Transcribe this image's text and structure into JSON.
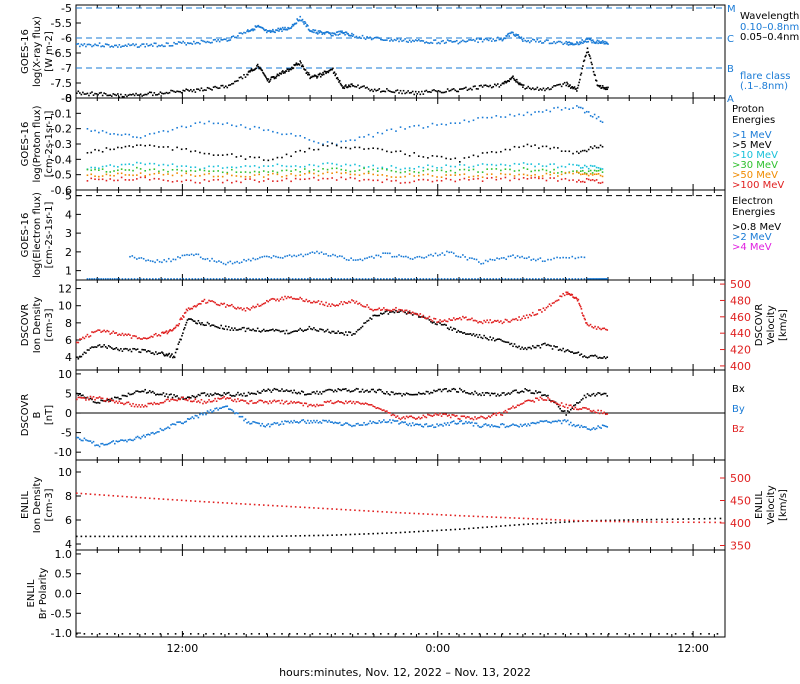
{
  "colors": {
    "black": "#000000",
    "blue": "#1a7bd6",
    "cyan": "#17c0d9",
    "green": "#2ec02e",
    "orange": "#f08a00",
    "red": "#e02020",
    "magenta": "#e020e0"
  },
  "x_axis": {
    "label": "hours:minutes, Nov. 12, 2022 – Nov. 13, 2022",
    "ticks": [
      {
        "hour": 12,
        "label": "12:00"
      },
      {
        "hour": 24,
        "label": "0:00"
      },
      {
        "hour": 36,
        "label": "12:00"
      }
    ],
    "range_hours": [
      7,
      37.5
    ]
  },
  "chart_data": [
    {
      "id": "xray",
      "type": "scatter",
      "ylabel_lines": [
        "GOES-16",
        "log(X-ray flux)",
        "[W m-2]"
      ],
      "ylim": [
        -8.0,
        -4.9
      ],
      "yticks": [
        -5.0,
        -5.5,
        -6.0,
        -6.5,
        -7.0,
        -7.5,
        -8.0
      ],
      "flare_lines": [
        {
          "value": -5.0,
          "label": "M"
        },
        {
          "value": -6.0,
          "label": "C"
        },
        {
          "value": -7.0,
          "label": "B"
        },
        {
          "value": -8.0,
          "label": "A"
        }
      ],
      "legend_title": "Wavelength",
      "legend": [
        {
          "name": "0.10–0.8nm",
          "color": "#1a7bd6"
        },
        {
          "name": "0.05–0.4nm",
          "color": "#000000"
        }
      ],
      "legend_note_lines": [
        "flare class",
        "(.1–.8nm)"
      ],
      "series": [
        {
          "name": "0.10–0.8nm",
          "color": "#1a7bd6",
          "x": [
            7.0,
            8.0,
            9.0,
            10.0,
            11.0,
            12.0,
            13.0,
            14.0,
            15.0,
            15.5,
            16.0,
            16.5,
            17.0,
            17.5,
            18.0,
            18.5,
            19.0,
            19.5,
            20.0,
            21.0,
            22.0,
            23.0,
            24.0,
            25.0,
            26.0,
            27.0,
            27.5,
            28.0,
            29.0,
            30.0,
            30.5,
            31.0,
            31.5,
            32.0
          ],
          "y": [
            -6.2,
            -6.2,
            -6.25,
            -6.22,
            -6.2,
            -6.15,
            -6.1,
            -6.05,
            -5.75,
            -5.6,
            -5.8,
            -5.7,
            -5.65,
            -5.3,
            -5.75,
            -5.8,
            -5.85,
            -5.8,
            -5.9,
            -6.0,
            -6.05,
            -6.08,
            -6.1,
            -6.1,
            -6.05,
            -6.0,
            -5.8,
            -6.05,
            -6.1,
            -6.15,
            -6.15,
            -6.05,
            -6.1,
            -6.12
          ]
        },
        {
          "name": "0.05–0.4nm",
          "color": "#000000",
          "x": [
            7.0,
            8.0,
            9.0,
            10.0,
            11.0,
            12.0,
            13.0,
            14.0,
            15.0,
            15.5,
            16.0,
            16.5,
            17.0,
            17.5,
            18.0,
            18.5,
            19.0,
            19.5,
            20.0,
            21.0,
            22.0,
            23.0,
            24.0,
            25.0,
            26.0,
            27.0,
            27.5,
            28.0,
            29.0,
            30.0,
            30.5,
            31.0,
            31.5,
            32.0
          ],
          "y": [
            -7.8,
            -7.85,
            -7.9,
            -7.85,
            -7.8,
            -7.75,
            -7.7,
            -7.6,
            -7.2,
            -6.9,
            -7.4,
            -7.2,
            -7.0,
            -6.8,
            -7.3,
            -7.2,
            -7.0,
            -7.6,
            -7.55,
            -7.7,
            -7.75,
            -7.8,
            -7.75,
            -7.7,
            -7.6,
            -7.55,
            -7.3,
            -7.6,
            -7.7,
            -7.5,
            -7.7,
            -6.3,
            -7.6,
            -7.65
          ]
        }
      ]
    },
    {
      "id": "proton",
      "type": "scatter",
      "ylabel_lines": [
        "GOES-16",
        "log(Proton flux)",
        "[cm-2s-1sr-1]"
      ],
      "ylim": [
        -0.6,
        0.0
      ],
      "yticks": [
        0.0,
        -0.1,
        -0.2,
        -0.3,
        -0.4,
        -0.5,
        -0.6
      ],
      "legend_title_lines": [
        "Proton",
        "Energies"
      ],
      "legend": [
        {
          "name": ">1 MeV",
          "color": "#1a7bd6"
        },
        {
          "name": ">5 MeV",
          "color": "#000000"
        },
        {
          "name": ">10 MeV",
          "color": "#17c0d9"
        },
        {
          "name": ">30 MeV",
          "color": "#2ec02e"
        },
        {
          "name": ">50 MeV",
          "color": "#f08a00"
        },
        {
          "name": ">100 MeV",
          "color": "#e02020"
        }
      ],
      "series": [
        {
          "name": ">1 MeV",
          "color": "#1a7bd6",
          "x": [
            7.5,
            10.0,
            13.0,
            16.0,
            19.0,
            22.0,
            25.0,
            28.0,
            30.5,
            31.8
          ],
          "y": [
            -0.2,
            -0.25,
            -0.15,
            -0.2,
            -0.3,
            -0.2,
            -0.15,
            -0.1,
            -0.05,
            -0.15
          ]
        },
        {
          "name": ">5 MeV",
          "color": "#000000",
          "x": [
            7.5,
            10.0,
            13.0,
            16.0,
            19.0,
            22.0,
            25.0,
            28.0,
            30.5,
            31.8
          ],
          "y": [
            -0.35,
            -0.3,
            -0.35,
            -0.4,
            -0.3,
            -0.35,
            -0.4,
            -0.3,
            -0.35,
            -0.3
          ]
        },
        {
          "name": ">10 MeV",
          "color": "#17c0d9",
          "x": [
            7.5,
            10.0,
            13.0,
            16.0,
            19.0,
            22.0,
            25.0,
            28.0,
            30.5,
            31.8
          ],
          "y": [
            -0.45,
            -0.42,
            -0.45,
            -0.44,
            -0.43,
            -0.45,
            -0.44,
            -0.43,
            -0.44,
            -0.45
          ]
        },
        {
          "name": ">30 MeV",
          "color": "#2ec02e",
          "x": [
            7.5,
            10.0,
            13.0,
            16.0,
            19.0,
            22.0,
            25.0,
            28.0,
            30.5,
            31.8
          ],
          "y": [
            -0.47,
            -0.46,
            -0.47,
            -0.48,
            -0.46,
            -0.47,
            -0.47,
            -0.46,
            -0.48,
            -0.47
          ]
        },
        {
          "name": ">50 MeV",
          "color": "#f08a00",
          "x": [
            7.5,
            10.0,
            13.0,
            16.0,
            19.0,
            22.0,
            25.0,
            28.0,
            30.5,
            31.8
          ],
          "y": [
            -0.5,
            -0.49,
            -0.5,
            -0.5,
            -0.49,
            -0.5,
            -0.5,
            -0.5,
            -0.49,
            -0.5
          ]
        },
        {
          "name": ">100 MeV",
          "color": "#e02020",
          "x": [
            7.5,
            10.0,
            13.0,
            16.0,
            19.0,
            22.0,
            25.0,
            28.0,
            30.5,
            31.8
          ],
          "y": [
            -0.53,
            -0.52,
            -0.54,
            -0.53,
            -0.52,
            -0.54,
            -0.53,
            -0.52,
            -0.53,
            -0.54
          ]
        }
      ]
    },
    {
      "id": "electron",
      "type": "scatter",
      "ylabel_lines": [
        "GOES-16",
        "log(Electron flux)",
        "[cm-2s-1sr-1]"
      ],
      "ylim": [
        0.5,
        5.3
      ],
      "yticks": [
        5,
        4,
        3,
        2,
        1
      ],
      "dashed_line": 5.0,
      "legend_title_lines": [
        "Electron",
        "Energies"
      ],
      "legend": [
        {
          "name": ">0.8 MeV",
          "color": "#000000"
        },
        {
          "name": ">2 MeV",
          "color": "#1a7bd6"
        },
        {
          "name": ">4 MeV",
          "color": "#e020e0"
        }
      ],
      "series": [
        {
          "name": ">2 MeV",
          "color": "#1a7bd6",
          "x": [
            7.5,
            9.0,
            11.0,
            13.0,
            15.0,
            17.0,
            19.0,
            21.0,
            23.0,
            25.0,
            27.0,
            29.0,
            31.0,
            32.0
          ],
          "y": [
            0.6,
            0.6,
            0.6,
            0.6,
            0.6,
            0.6,
            0.6,
            0.6,
            0.6,
            0.6,
            0.6,
            0.6,
            0.6,
            0.6
          ]
        },
        {
          "name": ">2 MeV scatter",
          "color": "#1a7bd6",
          "x": [
            9.5,
            11.0,
            12.5,
            14.0,
            15.5,
            17.0,
            18.5,
            20.0,
            21.5,
            23.0,
            24.5,
            26.0,
            27.5,
            29.0,
            31.0
          ],
          "y": [
            1.8,
            1.5,
            1.9,
            1.4,
            1.7,
            1.8,
            2.0,
            1.6,
            1.9,
            1.7,
            2.0,
            1.5,
            1.8,
            1.6,
            1.8
          ]
        }
      ]
    },
    {
      "id": "dscovr_plasma",
      "type": "scatter",
      "ylabel_lines": [
        "DSCOVR",
        "Ion Density",
        "[cm-3]"
      ],
      "ylim": [
        2.5,
        13
      ],
      "yticks": [
        12,
        10,
        8,
        6,
        4
      ],
      "y2label_lines": [
        "DSCOVR",
        "Velocity",
        "[km/s]"
      ],
      "y2lim": [
        395,
        505
      ],
      "y2ticks": [
        500,
        480,
        460,
        440,
        420,
        400
      ],
      "series": [
        {
          "name": "Ion Density",
          "color": "#000000",
          "x": [
            7.0,
            8.0,
            9.0,
            10.0,
            11.0,
            11.6,
            12.2,
            13.0,
            14.0,
            15.0,
            16.0,
            17.0,
            18.0,
            19.0,
            20.0,
            21.0,
            22.0,
            23.0,
            24.0,
            25.0,
            26.0,
            27.0,
            28.0,
            29.0,
            30.0,
            31.0,
            32.0
          ],
          "y": [
            4.0,
            5.5,
            5.0,
            4.8,
            4.5,
            4.2,
            8.5,
            8.0,
            7.5,
            7.3,
            7.2,
            7.0,
            7.5,
            7.0,
            6.8,
            9.0,
            9.5,
            9.0,
            8.0,
            7.0,
            6.5,
            6.0,
            5.0,
            5.5,
            4.8,
            4.2,
            4.0
          ]
        },
        {
          "name": "Velocity",
          "color": "#e02020",
          "axis": "y2",
          "x": [
            7.0,
            8.0,
            9.0,
            10.0,
            11.0,
            11.6,
            12.2,
            13.0,
            14.0,
            15.0,
            16.0,
            17.0,
            18.0,
            19.0,
            20.0,
            21.0,
            22.0,
            23.0,
            24.0,
            25.0,
            26.0,
            27.0,
            28.0,
            29.0,
            30.0,
            30.5,
            31.0,
            32.0
          ],
          "y": [
            430,
            445,
            440,
            435,
            440,
            445,
            470,
            480,
            475,
            470,
            480,
            485,
            480,
            475,
            480,
            470,
            470,
            465,
            455,
            460,
            455,
            455,
            460,
            470,
            490,
            485,
            450,
            445
          ]
        }
      ]
    },
    {
      "id": "dscovr_mag",
      "type": "scatter",
      "ylabel_lines": [
        "DSCOVR",
        "B",
        "[nT]"
      ],
      "ylim": [
        -12,
        11
      ],
      "yticks": [
        10,
        5,
        0,
        -5,
        -10
      ],
      "zero_line": true,
      "legend": [
        {
          "name": "Bx",
          "color": "#000000"
        },
        {
          "name": "By",
          "color": "#1a7bd6"
        },
        {
          "name": "Bz",
          "color": "#e02020"
        }
      ],
      "series": [
        {
          "name": "Bx",
          "color": "#000000",
          "x": [
            7.0,
            8.0,
            9.0,
            10.0,
            11.0,
            12.0,
            13.0,
            14.0,
            15.0,
            16.0,
            17.0,
            18.0,
            19.0,
            20.0,
            21.0,
            22.0,
            23.0,
            24.0,
            25.0,
            26.0,
            27.0,
            28.0,
            29.0,
            30.0,
            31.0,
            32.0
          ],
          "y": [
            5,
            3,
            4,
            6,
            5,
            4,
            5,
            5,
            5,
            6,
            6,
            5,
            6,
            6,
            6,
            5,
            5,
            6,
            6,
            5,
            5,
            6,
            5,
            0,
            5,
            5
          ]
        },
        {
          "name": "By",
          "color": "#1a7bd6",
          "x": [
            7.0,
            8.0,
            9.0,
            10.0,
            11.0,
            12.0,
            13.0,
            14.0,
            15.0,
            16.0,
            17.0,
            18.0,
            19.0,
            20.0,
            21.0,
            22.0,
            23.0,
            24.0,
            25.0,
            26.0,
            27.0,
            28.0,
            29.0,
            30.0,
            31.0,
            32.0
          ],
          "y": [
            -6,
            -8,
            -7,
            -6,
            -4,
            -2,
            0,
            2,
            -2,
            -3,
            -2,
            -2,
            -2,
            -3,
            -2,
            -2,
            -3,
            -3,
            -2,
            -3,
            -3,
            -3,
            -2,
            -2,
            -4,
            -3
          ]
        },
        {
          "name": "Bz",
          "color": "#e02020",
          "x": [
            7.0,
            8.0,
            9.0,
            10.0,
            11.0,
            12.0,
            13.0,
            14.0,
            15.0,
            16.0,
            17.0,
            18.0,
            19.0,
            20.0,
            21.0,
            22.0,
            23.0,
            24.0,
            25.0,
            26.0,
            27.0,
            28.0,
            29.0,
            30.0,
            31.0,
            32.0
          ],
          "y": [
            4,
            4,
            3,
            2,
            3,
            4,
            3,
            4,
            3,
            3,
            3,
            2,
            3,
            3,
            2,
            -1,
            -1,
            0,
            -1,
            -1,
            0,
            3,
            4,
            2,
            1,
            0
          ]
        }
      ]
    },
    {
      "id": "enlil_plasma",
      "type": "scatter",
      "ylabel_lines": [
        "ENLIL",
        "Ion Density",
        "[cm-3]"
      ],
      "ylim": [
        3.5,
        11
      ],
      "yticks": [
        10,
        8,
        6,
        4
      ],
      "y2label_lines": [
        "ENLIL",
        "Velocity",
        "[km/s]"
      ],
      "y2lim": [
        340,
        540
      ],
      "y2ticks": [
        500,
        450,
        400,
        350
      ],
      "series": [
        {
          "name": "Ion Density",
          "color": "#000000",
          "x": [
            7.0,
            10.0,
            13.0,
            16.0,
            19.0,
            22.0,
            25.0,
            28.0,
            31.0,
            34.0,
            37.5
          ],
          "y": [
            4.7,
            4.7,
            4.7,
            4.7,
            4.8,
            5.0,
            5.3,
            5.7,
            6.0,
            6.1,
            6.2
          ]
        },
        {
          "name": "Velocity",
          "color": "#e02020",
          "axis": "y2",
          "x": [
            7.0,
            10.0,
            13.0,
            16.0,
            19.0,
            22.0,
            25.0,
            28.0,
            31.0,
            34.0,
            37.5
          ],
          "y": [
            468,
            458,
            449,
            441,
            433,
            425,
            418,
            412,
            406,
            404,
            403
          ]
        }
      ]
    },
    {
      "id": "enlil_polarity",
      "type": "scatter",
      "ylabel_lines": [
        "ENLIL",
        "Br Polarity"
      ],
      "ylim": [
        -1.1,
        1.1
      ],
      "yticks": [
        1.0,
        0.5,
        0.0,
        -0.5,
        -1.0
      ],
      "ytick_labels": [
        "1.0",
        "0.5",
        "0.0",
        "-0.5",
        "-1.0"
      ],
      "series": [
        {
          "name": "Br Polarity",
          "color": "#000000",
          "x": [
            7.0,
            12.0,
            17.0,
            22.0,
            27.0,
            32.0,
            37.5
          ],
          "y": [
            -1.0,
            -1.0,
            -1.0,
            -1.0,
            -1.0,
            -1.0,
            -1.0
          ]
        }
      ]
    }
  ]
}
